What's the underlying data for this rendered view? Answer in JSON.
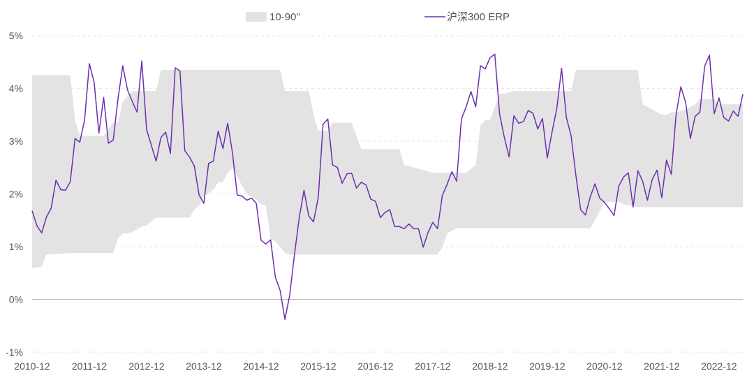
{
  "chart_data": {
    "type": "line",
    "title": "",
    "xlabel": "",
    "ylabel": "",
    "ylim": [
      -1,
      5
    ],
    "y_ticks": [
      "-1%",
      "0%",
      "1%",
      "2%",
      "3%",
      "4%",
      "5%"
    ],
    "y_tick_values": [
      -1,
      0,
      1,
      2,
      3,
      4,
      5
    ],
    "x_ticks": [
      "2010-12",
      "2011-12",
      "2012-12",
      "2013-12",
      "2014-12",
      "2015-12",
      "2016-12",
      "2017-12",
      "2018-12",
      "2019-12",
      "2020-12",
      "2021-12",
      "2022-12"
    ],
    "x_tick_values": [
      0,
      12,
      24,
      36,
      48,
      60,
      72,
      84,
      96,
      108,
      120,
      132,
      144
    ],
    "xlim": [
      0,
      149
    ],
    "grid": "horizontal dashed",
    "legend": "top-center",
    "band": {
      "name": "10-90''",
      "color": "#e3e3e3",
      "x": [
        0,
        0,
        2,
        3,
        8,
        9,
        10,
        11,
        15,
        17,
        18,
        19,
        20,
        21,
        23,
        24,
        26,
        27,
        33,
        34,
        35,
        36,
        38,
        39,
        40,
        41,
        42,
        45,
        46,
        47,
        48,
        49,
        50,
        51,
        52,
        53,
        54,
        55,
        56,
        58,
        59,
        60,
        62,
        63,
        64,
        67,
        68,
        69,
        70,
        72,
        74,
        75,
        77,
        78,
        84,
        85,
        86,
        87,
        88,
        89,
        90,
        91,
        93,
        94,
        95,
        96,
        98,
        99,
        101,
        103,
        104,
        106,
        107,
        110,
        112,
        113,
        114,
        116,
        117,
        118,
        120,
        123,
        124,
        127,
        128,
        130,
        131,
        132,
        133,
        134,
        135,
        137,
        138,
        139,
        140,
        141,
        142,
        143,
        144,
        145,
        149
      ],
      "lower": [
        0.6,
        0.6,
        0.62,
        0.85,
        0.88,
        0.88,
        0.88,
        0.88,
        0.88,
        0.88,
        1.15,
        1.25,
        1.25,
        1.28,
        1.38,
        1.4,
        1.55,
        1.55,
        1.55,
        1.7,
        1.78,
        1.95,
        2.08,
        2.22,
        2.22,
        2.4,
        2.48,
        2.0,
        1.95,
        1.9,
        1.8,
        1.78,
        1.15,
        1.1,
        1.0,
        0.88,
        0.85,
        0.85,
        0.85,
        0.85,
        0.85,
        0.85,
        0.85,
        0.85,
        0.85,
        0.85,
        0.85,
        0.85,
        0.85,
        0.85,
        0.85,
        0.85,
        0.85,
        0.85,
        0.85,
        0.85,
        0.98,
        1.25,
        1.3,
        1.35,
        1.35,
        1.35,
        1.35,
        1.35,
        1.35,
        1.35,
        1.35,
        1.35,
        1.35,
        1.35,
        1.35,
        1.35,
        1.35,
        1.35,
        1.35,
        1.35,
        1.35,
        1.35,
        1.35,
        1.5,
        1.85,
        1.85,
        1.8,
        1.75,
        1.75,
        1.75,
        1.75,
        1.75,
        1.75,
        1.75,
        1.75,
        1.75,
        1.75,
        1.75,
        1.75,
        1.75,
        1.75,
        1.75,
        1.75,
        1.75,
        1.75
      ],
      "upper": [
        4.25,
        4.25,
        4.25,
        4.25,
        4.25,
        3.4,
        3.1,
        3.1,
        3.1,
        3.35,
        3.35,
        3.75,
        3.85,
        3.95,
        3.95,
        3.95,
        3.95,
        4.35,
        4.35,
        4.35,
        4.35,
        4.35,
        4.35,
        4.35,
        4.35,
        4.35,
        4.35,
        4.35,
        4.35,
        4.35,
        4.35,
        4.35,
        4.35,
        4.35,
        4.35,
        3.95,
        3.95,
        3.95,
        3.95,
        3.95,
        3.5,
        3.2,
        3.2,
        3.35,
        3.35,
        3.35,
        3.1,
        2.85,
        2.85,
        2.85,
        2.85,
        2.85,
        2.85,
        2.55,
        2.4,
        2.4,
        2.4,
        2.4,
        2.4,
        2.4,
        2.4,
        2.4,
        2.55,
        3.3,
        3.4,
        3.4,
        3.9,
        3.9,
        3.95,
        3.95,
        3.95,
        3.95,
        3.95,
        3.95,
        3.95,
        3.95,
        4.35,
        4.35,
        4.35,
        4.35,
        4.35,
        4.35,
        4.35,
        4.35,
        3.7,
        3.6,
        3.55,
        3.5,
        3.5,
        3.55,
        3.55,
        3.6,
        3.65,
        3.7,
        3.8,
        3.8,
        3.8,
        3.8,
        3.7,
        3.7,
        3.7
      ]
    },
    "series": [
      {
        "name": "沪深300 ERP",
        "color": "#6a2fae",
        "x": [
          0,
          1,
          2,
          3,
          4,
          5,
          6,
          7,
          8,
          9,
          10,
          11,
          12,
          13,
          14,
          15,
          16,
          17,
          18,
          19,
          20,
          21,
          22,
          23,
          24,
          25,
          26,
          27,
          28,
          29,
          30,
          31,
          32,
          33,
          34,
          35,
          36,
          37,
          38,
          39,
          40,
          41,
          42,
          43,
          44,
          45,
          46,
          47,
          48,
          49,
          50,
          51,
          52,
          53,
          54,
          55,
          56,
          57,
          58,
          59,
          60,
          61,
          62,
          63,
          64,
          65,
          66,
          67,
          68,
          69,
          70,
          71,
          72,
          73,
          74,
          75,
          76,
          77,
          78,
          79,
          80,
          81,
          82,
          83,
          84,
          85,
          86,
          87,
          88,
          89,
          90,
          91,
          92,
          93,
          94,
          95,
          96,
          97,
          98,
          99,
          100,
          101,
          102,
          103,
          104,
          105,
          106,
          107,
          108,
          109,
          110,
          111,
          112,
          113,
          114,
          115,
          116,
          117,
          118,
          119,
          120,
          121,
          122,
          123,
          124,
          125,
          126,
          127,
          128,
          129,
          130,
          131,
          132,
          133,
          134,
          135,
          136,
          137,
          138,
          139,
          140,
          141,
          142,
          143,
          144,
          145,
          146,
          147,
          148,
          149
        ],
        "values": [
          1.68,
          1.4,
          1.26,
          1.56,
          1.73,
          2.26,
          2.08,
          2.07,
          2.23,
          3.05,
          2.98,
          3.4,
          4.47,
          4.12,
          3.15,
          3.83,
          2.96,
          3.02,
          3.8,
          4.43,
          3.97,
          3.75,
          3.55,
          4.52,
          3.22,
          2.92,
          2.62,
          3.07,
          3.17,
          2.77,
          4.39,
          4.33,
          2.82,
          2.7,
          2.53,
          1.98,
          1.82,
          2.58,
          2.62,
          3.19,
          2.86,
          3.34,
          2.78,
          1.98,
          1.96,
          1.88,
          1.92,
          1.82,
          1.12,
          1.05,
          1.13,
          0.42,
          0.17,
          -0.38,
          0.08,
          0.85,
          1.55,
          2.07,
          1.58,
          1.47,
          1.94,
          3.32,
          3.42,
          2.55,
          2.5,
          2.2,
          2.38,
          2.39,
          2.11,
          2.22,
          2.17,
          1.9,
          1.86,
          1.55,
          1.65,
          1.7,
          1.38,
          1.38,
          1.34,
          1.43,
          1.34,
          1.34,
          0.99,
          1.27,
          1.46,
          1.34,
          1.97,
          2.18,
          2.42,
          2.24,
          3.42,
          3.65,
          3.94,
          3.65,
          4.43,
          4.37,
          4.58,
          4.65,
          3.52,
          3.07,
          2.7,
          3.48,
          3.34,
          3.37,
          3.58,
          3.53,
          3.23,
          3.43,
          2.68,
          3.17,
          3.62,
          4.38,
          3.45,
          3.1,
          2.35,
          1.7,
          1.6,
          1.94,
          2.19,
          1.92,
          1.84,
          1.72,
          1.59,
          2.15,
          2.32,
          2.4,
          1.75,
          2.44,
          2.24,
          1.88,
          2.27,
          2.45,
          1.93,
          2.64,
          2.37,
          3.5,
          4.03,
          3.74,
          3.05,
          3.47,
          3.55,
          4.42,
          4.63,
          3.52,
          3.82,
          3.45,
          3.38,
          3.57,
          3.47,
          3.89
        ]
      }
    ]
  }
}
